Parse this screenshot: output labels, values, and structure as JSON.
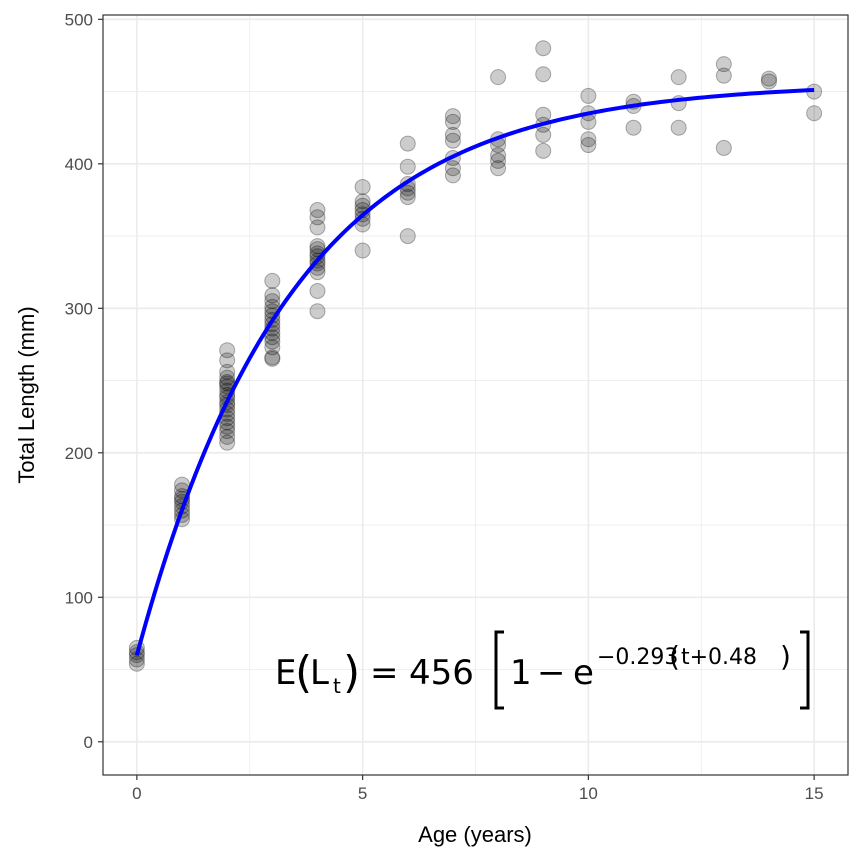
{
  "chart_data": {
    "type": "scatter",
    "title": "",
    "xlabel": "Age (years)",
    "ylabel": "Total Length (mm)",
    "xlim": [
      -0.75,
      15.75
    ],
    "ylim": [
      -23,
      503
    ],
    "x_ticks": [
      0,
      5,
      10,
      15
    ],
    "y_ticks": [
      0,
      100,
      200,
      300,
      400,
      500
    ],
    "grid": true,
    "point_color": "#000000",
    "point_opacity": 0.2,
    "curve_color": "#0000ff",
    "points": [
      [
        0,
        65
      ],
      [
        0,
        62
      ],
      [
        0,
        57
      ],
      [
        0,
        54
      ],
      [
        0,
        60
      ],
      [
        1,
        178
      ],
      [
        1,
        174
      ],
      [
        1,
        170
      ],
      [
        1,
        166
      ],
      [
        1,
        163
      ],
      [
        1,
        160
      ],
      [
        1,
        157
      ],
      [
        1,
        154
      ],
      [
        1,
        168
      ],
      [
        2,
        271
      ],
      [
        2,
        264
      ],
      [
        2,
        256
      ],
      [
        2,
        252
      ],
      [
        2,
        249
      ],
      [
        2,
        246
      ],
      [
        2,
        243
      ],
      [
        2,
        240
      ],
      [
        2,
        238
      ],
      [
        2,
        235
      ],
      [
        2,
        233
      ],
      [
        2,
        230
      ],
      [
        2,
        227
      ],
      [
        2,
        224
      ],
      [
        2,
        221
      ],
      [
        2,
        218
      ],
      [
        2,
        215
      ],
      [
        2,
        211
      ],
      [
        2,
        207
      ],
      [
        2,
        248
      ],
      [
        3,
        319
      ],
      [
        3,
        309
      ],
      [
        3,
        305
      ],
      [
        3,
        301
      ],
      [
        3,
        298
      ],
      [
        3,
        295
      ],
      [
        3,
        292
      ],
      [
        3,
        289
      ],
      [
        3,
        286
      ],
      [
        3,
        283
      ],
      [
        3,
        280
      ],
      [
        3,
        277
      ],
      [
        3,
        273
      ],
      [
        3,
        266
      ],
      [
        3,
        265
      ],
      [
        4,
        368
      ],
      [
        4,
        363
      ],
      [
        4,
        356
      ],
      [
        4,
        343
      ],
      [
        4,
        341
      ],
      [
        4,
        338
      ],
      [
        4,
        336
      ],
      [
        4,
        333
      ],
      [
        4,
        331
      ],
      [
        4,
        328
      ],
      [
        4,
        325
      ],
      [
        4,
        312
      ],
      [
        4,
        298
      ],
      [
        5,
        384
      ],
      [
        5,
        374
      ],
      [
        5,
        371
      ],
      [
        5,
        368
      ],
      [
        5,
        365
      ],
      [
        5,
        362
      ],
      [
        5,
        358
      ],
      [
        5,
        340
      ],
      [
        6,
        414
      ],
      [
        6,
        398
      ],
      [
        6,
        386
      ],
      [
        6,
        383
      ],
      [
        6,
        380
      ],
      [
        6,
        377
      ],
      [
        6,
        350
      ],
      [
        7,
        433
      ],
      [
        7,
        429
      ],
      [
        7,
        420
      ],
      [
        7,
        416
      ],
      [
        7,
        404
      ],
      [
        7,
        397
      ],
      [
        7,
        392
      ],
      [
        8,
        460
      ],
      [
        8,
        417
      ],
      [
        8,
        413
      ],
      [
        8,
        406
      ],
      [
        8,
        402
      ],
      [
        8,
        397
      ],
      [
        9,
        480
      ],
      [
        9,
        462
      ],
      [
        9,
        434
      ],
      [
        9,
        427
      ],
      [
        9,
        420
      ],
      [
        9,
        409
      ],
      [
        10,
        447
      ],
      [
        10,
        435
      ],
      [
        10,
        429
      ],
      [
        10,
        417
      ],
      [
        10,
        413
      ],
      [
        11,
        443
      ],
      [
        11,
        440
      ],
      [
        11,
        425
      ],
      [
        12,
        460
      ],
      [
        12,
        442
      ],
      [
        12,
        425
      ],
      [
        13,
        469
      ],
      [
        13,
        461
      ],
      [
        13,
        411
      ],
      [
        14,
        459
      ],
      [
        14,
        457
      ],
      [
        15,
        450
      ],
      [
        15,
        435
      ]
    ],
    "curve": {
      "model": "von_bertalanffy",
      "Linf": 456,
      "K": 0.293,
      "t0": -0.48,
      "x_range": [
        0,
        15
      ]
    },
    "annotation": {
      "lhs": "E",
      "subject": "L",
      "subject_subscript": "t",
      "equals": "=",
      "coefficient": "456",
      "one": "1",
      "minus": "−",
      "base": "e",
      "exponent_coef": "−0.293",
      "exponent_var": "t+0.48"
    }
  }
}
